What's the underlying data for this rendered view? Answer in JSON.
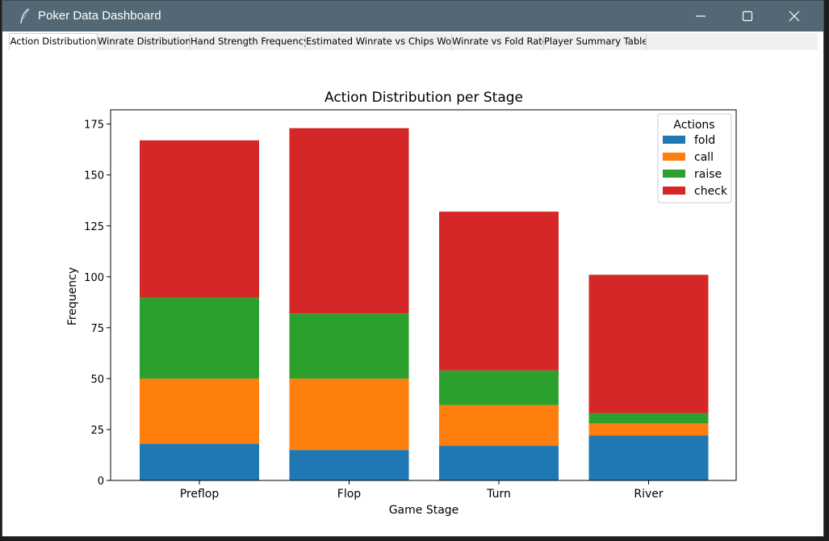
{
  "window": {
    "title": "Poker Data Dashboard",
    "icon": "feather-icon",
    "controls": [
      "minimize-icon",
      "maximize-icon",
      "close-icon"
    ]
  },
  "tabs": [
    {
      "label": "Action Distribution",
      "active": true
    },
    {
      "label": "Winrate Distribution",
      "active": false
    },
    {
      "label": "Hand Strength Frequency",
      "active": false
    },
    {
      "label": "Estimated Winrate vs Chips Won",
      "active": false
    },
    {
      "label": "Winrate vs Fold Rate",
      "active": false
    },
    {
      "label": "Player Summary Table",
      "active": false
    }
  ],
  "chart_data": {
    "type": "bar",
    "stacked": true,
    "title": "Action Distribution per Stage",
    "xlabel": "Game Stage",
    "ylabel": "Frequency",
    "categories": [
      "Preflop",
      "Flop",
      "Turn",
      "River"
    ],
    "ylim": [
      0,
      182
    ],
    "yticks": [
      0,
      25,
      50,
      75,
      100,
      125,
      150,
      175
    ],
    "legend": {
      "title": "Actions",
      "placement": "top-right"
    },
    "grid": false,
    "series": [
      {
        "name": "fold",
        "color": "#1f77b4",
        "values": [
          18,
          15,
          17,
          22
        ]
      },
      {
        "name": "call",
        "color": "#ff7f0e",
        "values": [
          32,
          35,
          20,
          6
        ]
      },
      {
        "name": "raise",
        "color": "#2ca02c",
        "values": [
          40,
          32,
          17,
          5
        ]
      },
      {
        "name": "check",
        "color": "#d62728",
        "values": [
          77,
          91,
          78,
          68
        ]
      }
    ]
  }
}
